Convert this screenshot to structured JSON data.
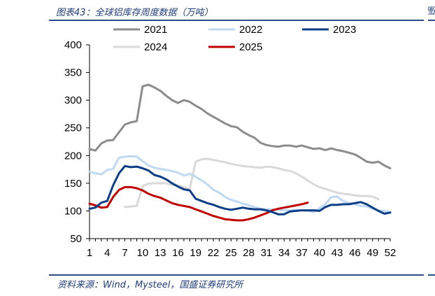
{
  "header": {
    "title": "图表43：全球铝库存周度数据（万吨）",
    "fragment": "图"
  },
  "footer": {
    "source": "资料来源：Wind，Mysteel，国盛证券研究所"
  },
  "chart_data": {
    "type": "line",
    "title": "",
    "xlabel": "",
    "ylabel": "",
    "xlim": [
      1,
      52
    ],
    "ylim": [
      50,
      400
    ],
    "xticks": [
      1,
      4,
      7,
      10,
      13,
      16,
      19,
      22,
      25,
      28,
      31,
      34,
      37,
      40,
      43,
      46,
      49,
      52
    ],
    "yticks": [
      50,
      100,
      150,
      200,
      250,
      300,
      350,
      400
    ],
    "legend_position": "top",
    "series": [
      {
        "name": "2021",
        "color": "#8c8c8c",
        "values": [
          212,
          209,
          222,
          227,
          228,
          242,
          256,
          260,
          262,
          325,
          328,
          323,
          317,
          308,
          300,
          295,
          300,
          297,
          290,
          284,
          276,
          270,
          264,
          258,
          253,
          251,
          243,
          237,
          232,
          223,
          219,
          217,
          216,
          218,
          218,
          216,
          218,
          215,
          212,
          213,
          210,
          213,
          210,
          208,
          205,
          202,
          196,
          189,
          187,
          189,
          182,
          177
        ]
      },
      {
        "name": "2022",
        "color": "#c0d9f2",
        "values": [
          171,
          168,
          166,
          174,
          176,
          196,
          198,
          199,
          198,
          190,
          182,
          178,
          176,
          174,
          172,
          169,
          164,
          167,
          162,
          155,
          148,
          138,
          133,
          125,
          120,
          117,
          113,
          110,
          107,
          104,
          103,
          103,
          102,
          101,
          101,
          102,
          101,
          100,
          98,
          105,
          112,
          125,
          126,
          118,
          114,
          112,
          109,
          108,
          104,
          101,
          100,
          98
        ]
      },
      {
        "name": "2023",
        "color": "#0b3e86",
        "values": [
          104,
          106,
          115,
          118,
          146,
          168,
          181,
          179,
          180,
          177,
          173,
          165,
          162,
          157,
          150,
          144,
          139,
          137,
          122,
          118,
          114,
          111,
          107,
          104,
          102,
          104,
          106,
          104,
          103,
          103,
          101,
          98,
          94,
          94,
          99,
          100,
          101,
          101,
          101,
          100,
          107,
          111,
          111,
          112,
          112,
          114,
          116,
          112,
          106,
          100,
          95,
          97
        ]
      },
      {
        "name": "2024",
        "color": "#d9d9d9",
        "values": [
          null,
          null,
          null,
          null,
          null,
          null,
          107,
          108,
          109,
          145,
          149,
          150,
          150,
          150,
          147,
          146,
          143,
          140,
          189,
          193,
          194,
          192,
          190,
          188,
          185,
          183,
          181,
          180,
          179,
          178,
          180,
          179,
          177,
          174,
          172,
          168,
          162,
          155,
          148,
          143,
          140,
          136,
          133,
          131,
          130,
          128,
          127,
          127,
          126,
          121,
          null,
          null
        ]
      },
      {
        "name": "2025",
        "color": "#c00000",
        "values": [
          113,
          110,
          106,
          107,
          125,
          138,
          143,
          143,
          141,
          137,
          131,
          127,
          124,
          119,
          114,
          111,
          109,
          107,
          103,
          99,
          95,
          91,
          88,
          85,
          84,
          83,
          83,
          85,
          88,
          92,
          96,
          101,
          104,
          106,
          108,
          110,
          112,
          115,
          null,
          null,
          null,
          null,
          null,
          null,
          null,
          null,
          null,
          null,
          null,
          null,
          null,
          null
        ]
      }
    ]
  }
}
